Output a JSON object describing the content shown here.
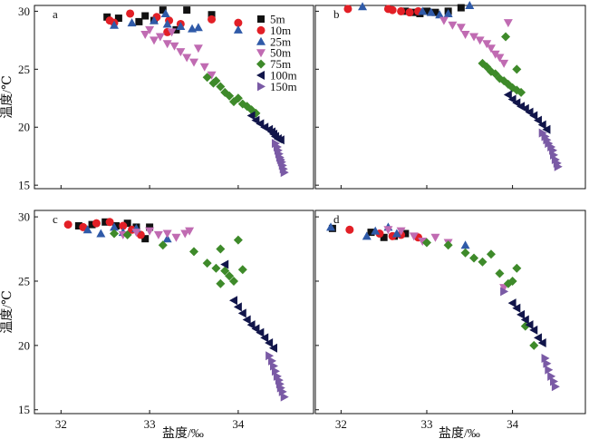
{
  "chart_data": [
    {
      "type": "scatter",
      "panel_label": "a",
      "xlim": [
        31.7,
        34.85
      ],
      "ylim": [
        14.7,
        30.5
      ],
      "x_ticks": [
        "32",
        "33",
        "34"
      ],
      "y_ticks": [
        "15",
        "20",
        "25",
        "30"
      ],
      "xlabel": "",
      "ylabel": "温度/℃",
      "series": [
        {
          "name": "5m",
          "x": [
            32.52,
            32.65,
            32.95,
            33.15,
            33.42,
            33.7,
            33.05,
            32.88,
            33.3
          ],
          "y": [
            29.5,
            29.4,
            29.6,
            30.1,
            30.1,
            29.7,
            29.2,
            29.1,
            28.4
          ]
        },
        {
          "name": "10m",
          "x": [
            32.55,
            32.78,
            33.08,
            33.22,
            33.35,
            33.7,
            34.0,
            32.6,
            33.2
          ],
          "y": [
            29.2,
            29.8,
            29.5,
            29.2,
            28.9,
            29.3,
            29.0,
            29.0,
            28.2
          ]
        },
        {
          "name": "25m",
          "x": [
            32.6,
            32.8,
            33.05,
            33.18,
            33.35,
            33.48,
            33.55,
            34.0,
            33.2
          ],
          "y": [
            28.8,
            29.0,
            29.2,
            29.8,
            28.7,
            28.5,
            28.6,
            28.4,
            28.9
          ]
        },
        {
          "name": "50m",
          "x": [
            32.95,
            33.05,
            33.12,
            33.2,
            33.28,
            33.35,
            33.42,
            33.5,
            33.55,
            33.62,
            33.7,
            33.0,
            33.25
          ],
          "y": [
            28.0,
            27.5,
            27.8,
            27.2,
            27.0,
            26.5,
            26.0,
            25.6,
            26.8,
            25.2,
            24.5,
            28.4,
            28.2
          ]
        },
        {
          "name": "75m",
          "x": [
            33.65,
            33.72,
            33.8,
            33.85,
            33.9,
            33.95,
            34.0,
            34.05,
            34.1,
            34.15,
            34.2,
            33.75
          ],
          "y": [
            24.3,
            23.8,
            23.5,
            23.0,
            22.7,
            22.2,
            22.5,
            22.0,
            21.8,
            21.5,
            21.2,
            24.0
          ]
        },
        {
          "name": "100m",
          "x": [
            34.15,
            34.2,
            34.25,
            34.3,
            34.35,
            34.38,
            34.4,
            34.42,
            34.45,
            34.48
          ],
          "y": [
            21.0,
            20.6,
            20.3,
            20.0,
            19.8,
            19.6,
            19.4,
            19.2,
            19.0,
            18.9
          ]
        },
        {
          "name": "150m",
          "x": [
            34.42,
            34.44,
            34.45,
            34.46,
            34.47,
            34.48,
            34.49,
            34.5,
            34.51,
            34.52
          ],
          "y": [
            18.6,
            18.3,
            18.0,
            17.7,
            17.4,
            17.2,
            17.0,
            16.7,
            16.4,
            16.1
          ]
        }
      ]
    },
    {
      "type": "scatter",
      "panel_label": "b",
      "xlim": [
        31.7,
        34.85
      ],
      "ylim": [
        14.7,
        30.5
      ],
      "x_ticks": [
        "32",
        "33",
        "34"
      ],
      "y_ticks": [
        "15",
        "20",
        "25",
        "30"
      ],
      "xlabel": "",
      "ylabel": "",
      "series": [
        {
          "name": "5m",
          "x": [
            32.75,
            32.85,
            32.92,
            33.0,
            33.1,
            33.25,
            33.4
          ],
          "y": [
            30.0,
            29.9,
            29.8,
            30.0,
            29.9,
            30.0,
            30.3
          ]
        },
        {
          "name": "10m",
          "x": [
            32.08,
            32.55,
            32.6,
            32.7,
            32.8,
            32.9
          ],
          "y": [
            30.2,
            30.2,
            30.1,
            30.0,
            29.9,
            30.0
          ]
        },
        {
          "name": "25m",
          "x": [
            32.25,
            32.95,
            33.05,
            33.15,
            33.25,
            33.5
          ],
          "y": [
            30.4,
            30.0,
            29.9,
            29.7,
            29.8,
            30.5
          ]
        },
        {
          "name": "50m",
          "x": [
            33.2,
            33.3,
            33.4,
            33.45,
            33.55,
            33.62,
            33.7,
            33.75,
            33.8,
            33.85,
            33.9,
            33.95
          ],
          "y": [
            29.2,
            28.8,
            28.6,
            28.0,
            27.8,
            27.5,
            27.2,
            26.8,
            26.3,
            26.0,
            25.5,
            29.0
          ]
        },
        {
          "name": "75m",
          "x": [
            33.65,
            33.7,
            33.75,
            33.8,
            33.85,
            33.9,
            33.95,
            34.0,
            34.05,
            34.1,
            33.92,
            34.05
          ],
          "y": [
            25.5,
            25.2,
            24.8,
            24.6,
            24.2,
            24.0,
            23.7,
            23.4,
            23.2,
            23.0,
            27.8,
            25.0
          ]
        },
        {
          "name": "100m",
          "x": [
            33.95,
            34.0,
            34.05,
            34.1,
            34.15,
            34.2,
            34.25,
            34.3,
            34.35,
            34.4
          ],
          "y": [
            22.8,
            22.4,
            22.1,
            21.8,
            21.6,
            21.3,
            21.0,
            20.6,
            20.2,
            19.8
          ]
        },
        {
          "name": "150m",
          "x": [
            34.35,
            34.38,
            34.4,
            34.42,
            34.45,
            34.47,
            34.48,
            34.5,
            34.52,
            34.53
          ],
          "y": [
            19.5,
            19.2,
            18.9,
            18.6,
            18.3,
            18.0,
            17.6,
            17.2,
            16.9,
            16.6
          ]
        }
      ]
    },
    {
      "type": "scatter",
      "panel_label": "c",
      "xlim": [
        31.7,
        34.85
      ],
      "ylim": [
        14.7,
        30.5
      ],
      "x_ticks": [
        "32",
        "33",
        "34"
      ],
      "y_ticks": [
        "15",
        "20",
        "25",
        "30"
      ],
      "xlabel": "盐度/‰",
      "ylabel": "温度/℃",
      "series": [
        {
          "name": "5m",
          "x": [
            32.2,
            32.35,
            32.5,
            32.62,
            32.75,
            32.85,
            32.95,
            33.0
          ],
          "y": [
            29.3,
            29.4,
            29.6,
            29.3,
            29.5,
            29.2,
            28.3,
            29.2
          ]
        },
        {
          "name": "10m",
          "x": [
            32.08,
            32.25,
            32.4,
            32.55,
            32.7,
            32.8,
            32.9
          ],
          "y": [
            29.4,
            29.2,
            29.5,
            29.6,
            29.3,
            29.0,
            28.6
          ]
        },
        {
          "name": "25m",
          "x": [
            32.3,
            32.45,
            32.6,
            32.7,
            32.85,
            33.2
          ],
          "y": [
            29.0,
            28.7,
            29.2,
            28.8,
            29.1,
            28.3
          ]
        },
        {
          "name": "50m",
          "x": [
            32.7,
            32.85,
            33.0,
            33.1,
            33.2,
            33.3,
            33.4,
            33.45
          ],
          "y": [
            28.6,
            28.8,
            28.9,
            28.6,
            28.7,
            28.4,
            28.7,
            28.9
          ]
        },
        {
          "name": "75m",
          "x": [
            32.6,
            32.75,
            33.15,
            33.5,
            33.65,
            33.75,
            33.8,
            33.85,
            33.9,
            33.95,
            34.0,
            34.05,
            33.8
          ],
          "y": [
            28.7,
            28.6,
            27.8,
            27.3,
            26.4,
            26.0,
            27.5,
            25.8,
            25.4,
            25.0,
            28.2,
            25.9,
            24.8
          ]
        },
        {
          "name": "100m",
          "x": [
            33.85,
            33.95,
            34.0,
            34.05,
            34.1,
            34.15,
            34.2,
            34.25,
            34.3,
            34.35,
            34.4
          ],
          "y": [
            26.3,
            23.5,
            23.0,
            22.5,
            22.0,
            21.6,
            21.3,
            21.0,
            20.6,
            20.2,
            19.8
          ]
        },
        {
          "name": "150m",
          "x": [
            34.35,
            34.38,
            34.4,
            34.42,
            34.44,
            34.46,
            34.47,
            34.48,
            34.5,
            34.52
          ],
          "y": [
            19.2,
            18.8,
            18.4,
            18.0,
            17.6,
            17.3,
            17.0,
            16.7,
            16.4,
            16.0
          ]
        }
      ]
    },
    {
      "type": "scatter",
      "panel_label": "d",
      "xlim": [
        31.7,
        34.85
      ],
      "ylim": [
        14.7,
        30.5
      ],
      "x_ticks": [
        "32",
        "33",
        "34"
      ],
      "y_ticks": [
        "15",
        "20",
        "25",
        "30"
      ],
      "xlabel": "盐度/‰",
      "ylabel": "",
      "series": [
        {
          "name": "5m",
          "x": [
            31.9,
            32.35,
            32.5,
            32.62,
            32.75
          ],
          "y": [
            29.1,
            28.8,
            28.4,
            28.5,
            28.7
          ]
        },
        {
          "name": "10m",
          "x": [
            32.1,
            32.45,
            32.6,
            32.7,
            32.9
          ],
          "y": [
            29.0,
            28.7,
            28.5,
            28.6,
            28.4
          ]
        },
        {
          "name": "25m",
          "x": [
            31.88,
            32.3,
            32.4,
            32.55,
            32.65,
            33.45
          ],
          "y": [
            29.2,
            28.5,
            28.9,
            29.2,
            28.7,
            27.8
          ]
        },
        {
          "name": "50m",
          "x": [
            32.55,
            32.7,
            32.85,
            32.95,
            33.1,
            33.25,
            33.9
          ],
          "y": [
            29.0,
            28.9,
            28.5,
            28.1,
            28.4,
            28.0,
            24.5
          ]
        },
        {
          "name": "75m",
          "x": [
            33.0,
            33.25,
            33.45,
            33.55,
            33.65,
            33.75,
            33.85,
            33.95,
            34.0,
            34.05,
            34.15,
            34.25
          ],
          "y": [
            28.0,
            27.8,
            27.2,
            26.8,
            26.5,
            27.1,
            25.6,
            24.8,
            25.0,
            26.0,
            21.5,
            20.0
          ]
        },
        {
          "name": "100m",
          "x": [
            34.0,
            34.05,
            34.1,
            34.15,
            34.2,
            34.25,
            34.3,
            34.35
          ],
          "y": [
            23.3,
            22.9,
            22.4,
            22.0,
            21.6,
            21.2,
            20.6,
            20.2
          ]
        },
        {
          "name": "150m",
          "x": [
            33.9,
            34.38,
            34.4,
            34.42,
            34.45,
            34.48,
            34.5
          ],
          "y": [
            24.2,
            19.0,
            18.6,
            18.1,
            17.6,
            17.2,
            16.8
          ]
        }
      ]
    }
  ],
  "legend": {
    "placement": "top-right of panel a",
    "entries": [
      {
        "name": "5m",
        "marker": "square",
        "color": "#111111"
      },
      {
        "name": "10m",
        "marker": "circle",
        "color": "#e21f26"
      },
      {
        "name": "25m",
        "marker": "triangle-up",
        "color": "#2f5aa8"
      },
      {
        "name": "50m",
        "marker": "triangle-down",
        "color": "#c06bb2"
      },
      {
        "name": "75m",
        "marker": "diamond",
        "color": "#3e8a2a"
      },
      {
        "name": "100m",
        "marker": "triangle-left",
        "color": "#11154a"
      },
      {
        "name": "150m",
        "marker": "triangle-right",
        "color": "#7a5aa5"
      }
    ]
  }
}
